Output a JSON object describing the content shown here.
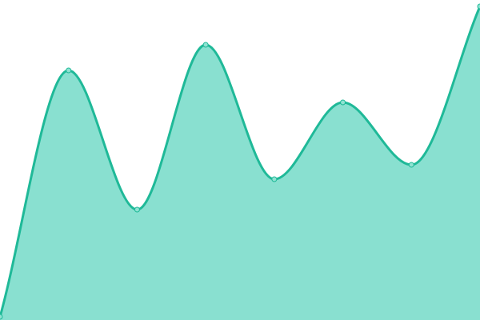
{
  "chart_data": {
    "type": "area",
    "title": "",
    "xlabel": "",
    "ylabel": "",
    "x": [
      0,
      1,
      2,
      3,
      4,
      5,
      6,
      7
    ],
    "series": [
      {
        "values": [
          1,
          78,
          34.5,
          86,
          44,
          68,
          48.5,
          98
        ]
      }
    ],
    "ylim": [
      0,
      100
    ],
    "grid": false,
    "legend": "none",
    "curve": "smooth",
    "colors": {
      "line": "#1fb998",
      "fill": "#89e0d0",
      "marker_fill": "#8fe3d2",
      "marker_stroke": "#1fb998"
    }
  }
}
